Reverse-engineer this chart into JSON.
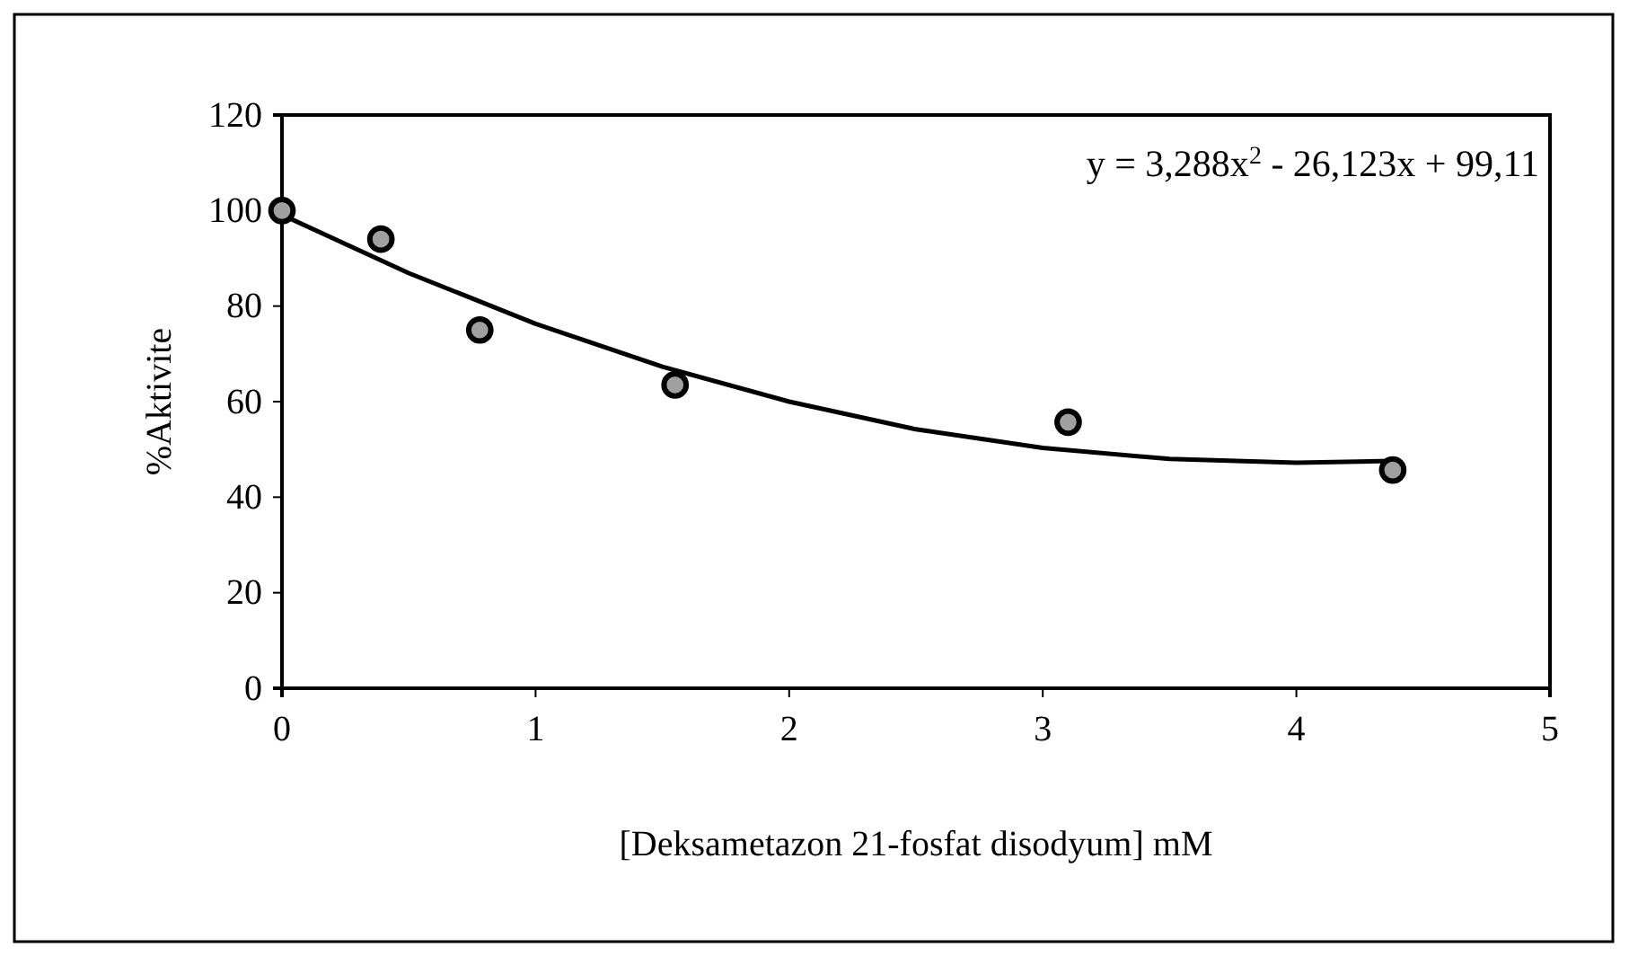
{
  "chart_data": {
    "type": "scatter",
    "xlabel": "[Deksametazon 21-fosfat disodyum] mM",
    "ylabel": "%Aktivite",
    "x": [
      0,
      0.39,
      0.78,
      1.55,
      3.1,
      4.38
    ],
    "series": [
      {
        "color": "#a0a0a0",
        "marker": "circle",
        "values": [
          100,
          94,
          75,
          63.5,
          55.7,
          45.7
        ]
      },
      {
        "type": "line",
        "color": "#000000",
        "marker": "none",
        "line_style": "solid",
        "x": [
          0,
          0.5,
          1,
          1.5,
          2,
          2.5,
          3,
          3.5,
          4,
          4.38
        ],
        "values": [
          99.1,
          86.9,
          76.3,
          67.3,
          60.0,
          54.2,
          50.3,
          48.0,
          47.2,
          47.6
        ]
      }
    ],
    "annotations": [
      "y = 3,288x$^{2}$ - 26,123x + 99,11"
    ],
    "xlim": [
      0,
      5
    ],
    "xticks": [
      0,
      1,
      2,
      3,
      4,
      5
    ],
    "ylim": [
      0,
      120
    ],
    "yticks": [
      0,
      20,
      40,
      60,
      80,
      100,
      120
    ],
    "grid": false
  }
}
